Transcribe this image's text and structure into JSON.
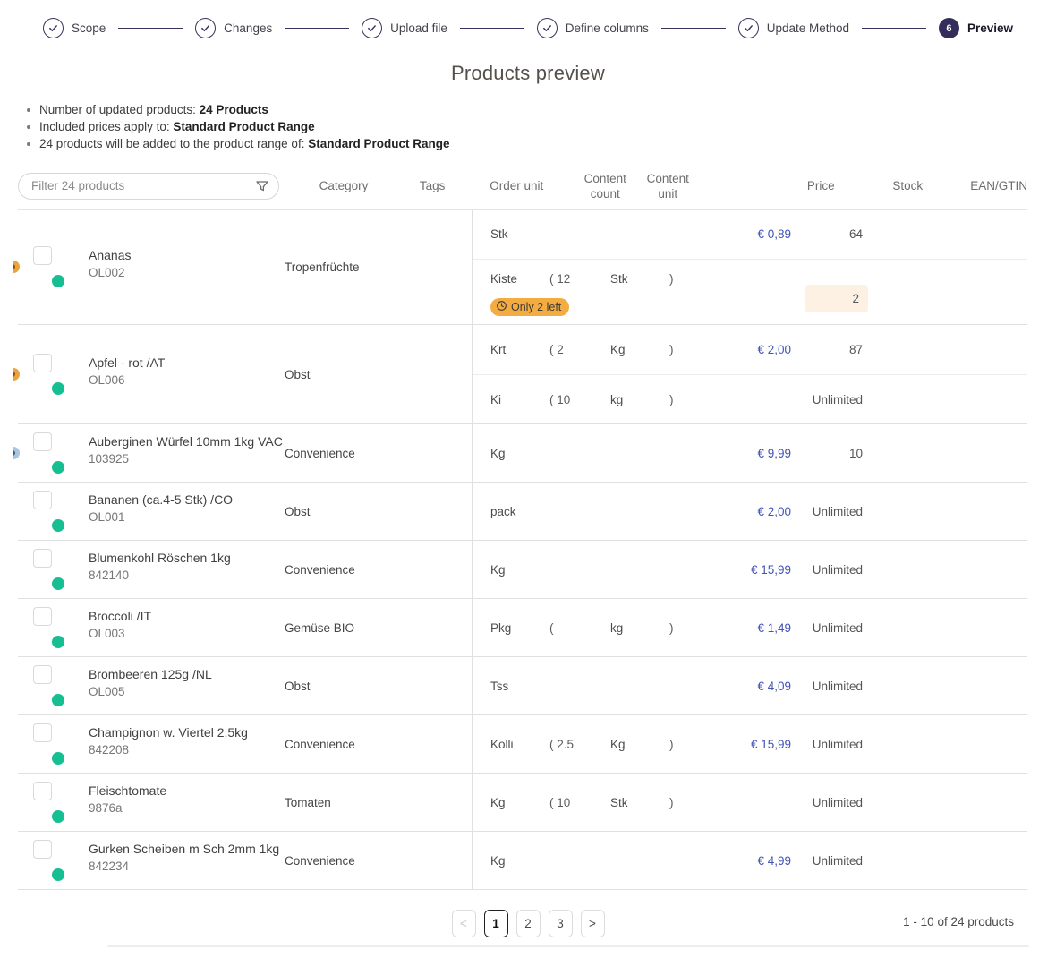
{
  "stepper": {
    "steps": [
      {
        "label": "Scope",
        "state": "complete"
      },
      {
        "label": "Changes",
        "state": "complete"
      },
      {
        "label": "Upload file",
        "state": "complete"
      },
      {
        "label": "Define columns",
        "state": "complete"
      },
      {
        "label": "Update Method",
        "state": "complete"
      },
      {
        "label": "Preview",
        "state": "active",
        "number": "6"
      }
    ]
  },
  "page_title": "Products preview",
  "summary": [
    {
      "label": "Number of updated products: ",
      "value": "24 Products"
    },
    {
      "label": "Included prices apply to: ",
      "value": "Standard Product Range"
    },
    {
      "label": "24 products will be added to the product range of: ",
      "value": "Standard Product Range"
    }
  ],
  "filter": {
    "placeholder": "Filter 24 products",
    "icon": "funnel-icon"
  },
  "table": {
    "headers": {
      "category": "Category",
      "tags": "Tags",
      "order_unit": "Order unit",
      "content_count": "Content count",
      "content_unit": "Content unit",
      "price": "Price",
      "stock": "Stock",
      "ean": "EAN/GTIN"
    },
    "products": [
      {
        "name": "Ananas",
        "code": "OL002",
        "category": "Tropenfrüchte",
        "edge_icon": "orange",
        "units": [
          {
            "unit": "Stk",
            "count": "",
            "content_unit": "",
            "paren": false,
            "price": "€ 0,89",
            "stock": "64"
          },
          {
            "unit": "Kiste",
            "count": "12",
            "content_unit": "Stk",
            "paren": true,
            "price": "",
            "stock": "2",
            "stock_highlight": true,
            "badge": "Only 2 left"
          }
        ]
      },
      {
        "name": "Apfel - rot /AT",
        "code": "OL006",
        "category": "Obst",
        "edge_icon": "orange",
        "units": [
          {
            "unit": "Krt",
            "count": "2",
            "content_unit": "Kg",
            "paren": true,
            "price": "€ 2,00",
            "stock": "87"
          },
          {
            "unit": "Ki",
            "count": "10",
            "content_unit": "kg",
            "paren": true,
            "price": "",
            "stock": "Unlimited"
          }
        ]
      },
      {
        "name": "Auberginen Würfel 10mm 1kg VAC",
        "code": "103925",
        "category": "Convenience",
        "edge_icon": "blue",
        "units": [
          {
            "unit": "Kg",
            "count": "",
            "content_unit": "",
            "paren": false,
            "price": "€ 9,99",
            "stock": "10"
          }
        ]
      },
      {
        "name": "Bananen (ca.4-5 Stk) /CO",
        "code": "OL001",
        "category": "Obst",
        "units": [
          {
            "unit": "pack",
            "count": "",
            "content_unit": "",
            "paren": false,
            "price": "€ 2,00",
            "stock": "Unlimited"
          }
        ]
      },
      {
        "name": "Blumenkohl Röschen 1kg",
        "code": "842140",
        "category": "Convenience",
        "units": [
          {
            "unit": "Kg",
            "count": "",
            "content_unit": "",
            "paren": false,
            "price": "€ 15,99",
            "stock": "Unlimited"
          }
        ]
      },
      {
        "name": "Broccoli /IT",
        "code": "OL003",
        "category": "Gemüse BIO",
        "units": [
          {
            "unit": "Pkg",
            "count": "",
            "content_unit": "kg",
            "paren": true,
            "price": "€ 1,49",
            "stock": "Unlimited"
          }
        ]
      },
      {
        "name": "Brombeeren 125g /NL",
        "code": "OL005",
        "category": "Obst",
        "units": [
          {
            "unit": "Tss",
            "count": "",
            "content_unit": "",
            "paren": false,
            "price": "€ 4,09",
            "stock": "Unlimited"
          }
        ]
      },
      {
        "name": "Champignon w. Viertel 2,5kg",
        "code": "842208",
        "category": "Convenience",
        "units": [
          {
            "unit": "Kolli",
            "count": "2.5",
            "content_unit": "Kg",
            "paren": true,
            "price": "€ 15,99",
            "stock": "Unlimited"
          }
        ]
      },
      {
        "name": "Fleischtomate",
        "code": "9876a",
        "category": "Tomaten",
        "units": [
          {
            "unit": "Kg",
            "count": "10",
            "content_unit": "Stk",
            "paren": true,
            "price": "",
            "stock": "Unlimited"
          }
        ]
      },
      {
        "name": "Gurken Scheiben m Sch 2mm 1kg",
        "code": "842234",
        "category": "Convenience",
        "units": [
          {
            "unit": "Kg",
            "count": "",
            "content_unit": "",
            "paren": false,
            "price": "€ 4,99",
            "stock": "Unlimited"
          }
        ]
      }
    ]
  },
  "pagination": {
    "prev_label": "<",
    "next_label": ">",
    "pages": [
      "1",
      "2",
      "3"
    ],
    "active_page": "1",
    "range_text": "1 - 10 of 24 products"
  },
  "colors": {
    "stepper_navy": "#37325e",
    "price_blue": "#4253b4",
    "status_green": "#16bf92",
    "badge_orange": "#f3ac42",
    "stock_highlight_bg": "#fcf1e3"
  }
}
